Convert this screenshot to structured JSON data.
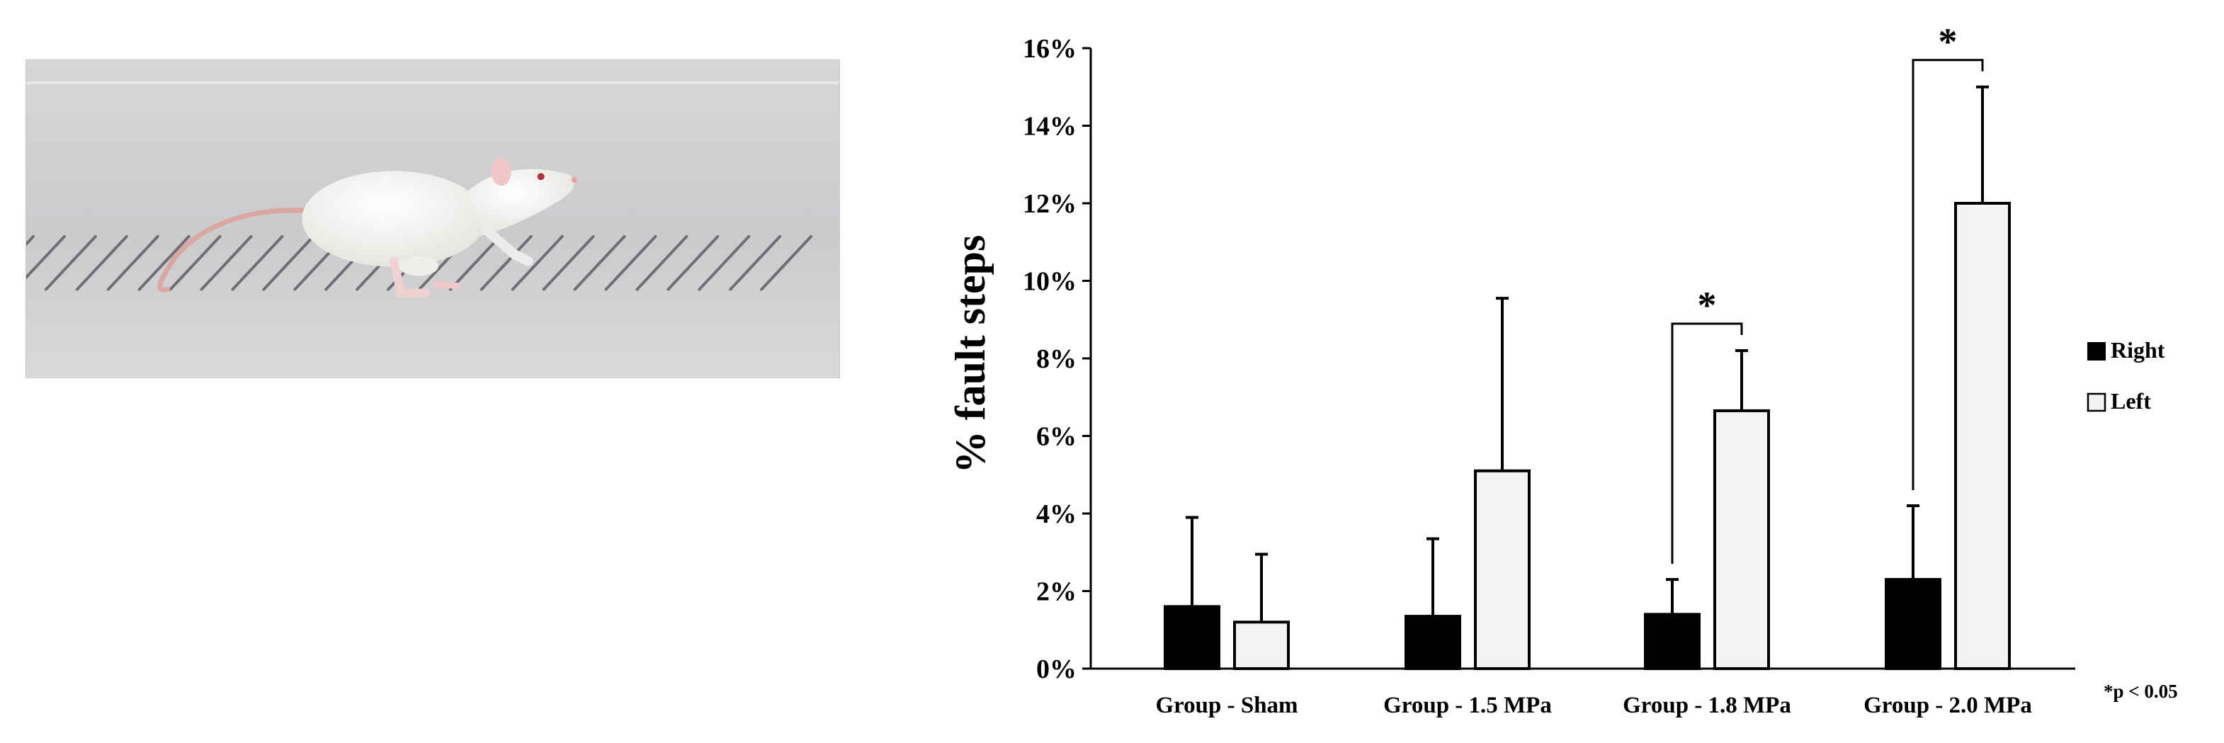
{
  "photo": {
    "subject": "white rat walking on a horizontal ladder (grid walk test)"
  },
  "chart_data": {
    "type": "bar",
    "ylabel": "% fault steps",
    "ylim": [
      0,
      16
    ],
    "y_ticks": [
      "0%",
      "2%",
      "4%",
      "6%",
      "8%",
      "10%",
      "12%",
      "14%",
      "16%"
    ],
    "y_tick_values": [
      0,
      2,
      4,
      6,
      8,
      10,
      12,
      14,
      16
    ],
    "categories": [
      "Group - Sham",
      "Group - 1.5 MPa",
      "Group - 1.8 MPa",
      "Group - 2.0 MPa"
    ],
    "series": [
      {
        "name": "Right",
        "values": [
          1.6,
          1.35,
          1.4,
          2.3
        ],
        "errors": [
          2.3,
          2.0,
          0.9,
          1.9
        ],
        "fill": "#000000"
      },
      {
        "name": "Left",
        "values": [
          1.2,
          5.1,
          6.65,
          12.0
        ],
        "errors": [
          1.75,
          4.45,
          1.55,
          3.0
        ],
        "fill": "#f2f2f2"
      }
    ],
    "significance": [
      {
        "category_index": 2,
        "label": "*"
      },
      {
        "category_index": 3,
        "label": "*"
      }
    ],
    "legend": {
      "position": "right",
      "items": [
        "Right",
        "Left"
      ]
    },
    "grid": false,
    "note": "*p < 0.05"
  }
}
